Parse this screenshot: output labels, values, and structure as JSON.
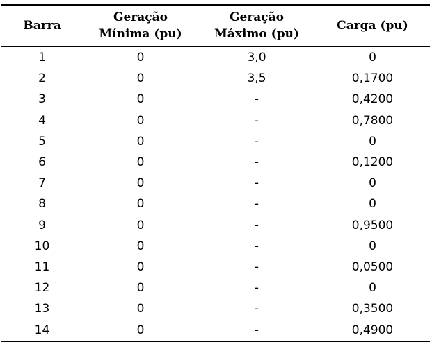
{
  "table": {
    "headers": [
      {
        "lines": [
          "Barra"
        ]
      },
      {
        "lines": [
          "Geração",
          "Mínima (pu)"
        ]
      },
      {
        "lines": [
          "Geração",
          "Máximo (pu)"
        ]
      },
      {
        "lines": [
          "Carga (pu)"
        ]
      }
    ],
    "rows": [
      [
        "1",
        "0",
        "3,0",
        "0"
      ],
      [
        "2",
        "0",
        "3,5",
        "0,1700"
      ],
      [
        "3",
        "0",
        "-",
        "0,4200"
      ],
      [
        "4",
        "0",
        "-",
        "0,7800"
      ],
      [
        "5",
        "0",
        "-",
        "0"
      ],
      [
        "6",
        "0",
        "-",
        "0,1200"
      ],
      [
        "7",
        "0",
        "-",
        "0"
      ],
      [
        "8",
        "0",
        "-",
        "0"
      ],
      [
        "9",
        "0",
        "-",
        "0,9500"
      ],
      [
        "10",
        "0",
        "-",
        "0"
      ],
      [
        "11",
        "0",
        "-",
        "0,0500"
      ],
      [
        "12",
        "0",
        "-",
        "0"
      ],
      [
        "13",
        "0",
        "-",
        "0,3500"
      ],
      [
        "14",
        "0",
        "-",
        "0,4900"
      ]
    ]
  }
}
